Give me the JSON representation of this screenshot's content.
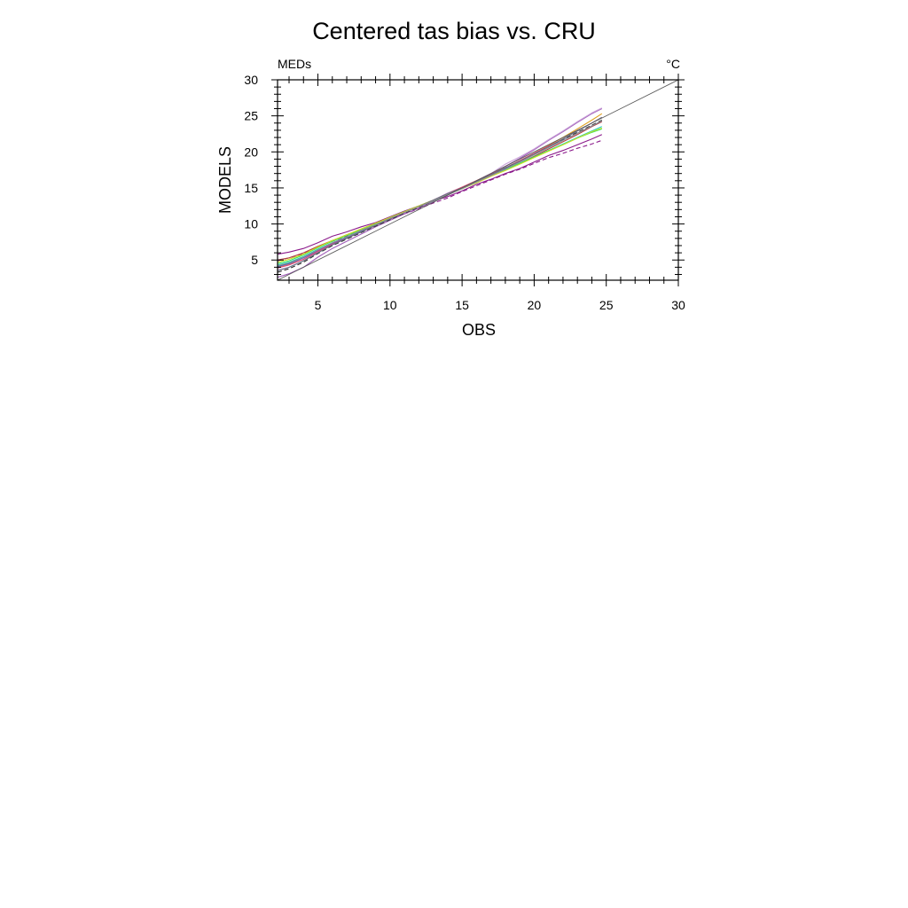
{
  "chart_data": {
    "type": "line",
    "title": "Centered tas bias vs. CRU",
    "subtitle_left": "MEDs",
    "subtitle_right": "°C",
    "xlabel": "OBS",
    "ylabel": "MODELS",
    "xlim": [
      2.2,
      30
    ],
    "ylim": [
      2.2,
      30
    ],
    "xticks": [
      5,
      10,
      15,
      20,
      25,
      30
    ],
    "yticks": [
      5,
      10,
      15,
      20,
      25,
      30
    ],
    "grid": false,
    "legend": "none",
    "reference_line": {
      "x": [
        2.2,
        30
      ],
      "y": [
        2.2,
        30
      ],
      "color": "#555555"
    },
    "series_x": [
      2.2,
      3,
      4,
      5,
      6,
      7,
      8,
      9,
      10,
      11,
      12,
      13,
      14,
      15,
      16,
      17,
      18,
      19,
      20,
      21,
      22,
      23,
      24,
      24.7
    ],
    "series": [
      {
        "color": "#8b1a8b",
        "dashed": false,
        "values": [
          5.8,
          6.1,
          6.6,
          7.4,
          8.3,
          8.9,
          9.6,
          10.2,
          11.0,
          11.8,
          12.5,
          13.2,
          13.8,
          14.6,
          15.5,
          16.2,
          17.0,
          17.7,
          18.6,
          19.5,
          20.2,
          21.0,
          21.8,
          22.4
        ]
      },
      {
        "color": "#8b1a8b",
        "dashed": true,
        "values": [
          4.9,
          5.3,
          5.9,
          6.8,
          7.6,
          8.3,
          9.1,
          9.8,
          10.7,
          11.4,
          12.1,
          12.9,
          13.6,
          14.5,
          15.3,
          16.1,
          16.9,
          17.6,
          18.4,
          19.2,
          19.8,
          20.5,
          21.1,
          21.6
        ]
      },
      {
        "color": "#a05cb8",
        "dashed": false,
        "values": [
          2.6,
          3.1,
          4.0,
          5.4,
          6.6,
          7.6,
          8.6,
          9.6,
          10.5,
          11.4,
          12.2,
          13.1,
          14.0,
          15.0,
          16.0,
          17.0,
          18.0,
          19.1,
          20.3,
          21.6,
          22.8,
          24.1,
          25.3,
          26.0
        ]
      },
      {
        "color": "#c8a0d8",
        "dashed": false,
        "values": [
          3.6,
          4.0,
          4.9,
          6.1,
          7.2,
          8.1,
          9.0,
          9.9,
          10.8,
          11.6,
          12.4,
          13.3,
          14.3,
          15.1,
          16.0,
          17.0,
          18.3,
          19.3,
          20.4,
          21.7,
          22.9,
          24.2,
          25.4,
          26.1
        ]
      },
      {
        "color": "#b04040",
        "dashed": false,
        "values": [
          5.0,
          5.3,
          6.0,
          6.9,
          7.7,
          8.5,
          9.3,
          10.1,
          10.9,
          11.7,
          12.5,
          13.3,
          14.1,
          14.9,
          15.8,
          16.7,
          17.5,
          18.4,
          19.4,
          20.4,
          21.4,
          22.4,
          23.5,
          24.2
        ]
      },
      {
        "color": "#e0a020",
        "dashed": false,
        "values": [
          4.0,
          4.4,
          5.1,
          6.2,
          7.2,
          8.0,
          8.9,
          9.8,
          10.7,
          11.6,
          12.4,
          13.3,
          14.2,
          15.1,
          16.0,
          16.9,
          17.8,
          18.8,
          19.8,
          20.9,
          22.0,
          23.2,
          24.4,
          25.3
        ]
      },
      {
        "color": "#20d0c0",
        "dashed": false,
        "values": [
          4.3,
          4.7,
          5.5,
          6.5,
          7.4,
          8.2,
          9.1,
          9.9,
          10.8,
          11.6,
          12.4,
          13.2,
          14.1,
          14.9,
          15.8,
          16.7,
          17.5,
          18.4,
          19.3,
          20.2,
          21.1,
          22.0,
          22.9,
          23.5
        ]
      },
      {
        "color": "#30e060",
        "dashed": false,
        "values": [
          4.5,
          4.9,
          5.7,
          6.7,
          7.6,
          8.4,
          9.2,
          10.0,
          10.9,
          11.7,
          12.5,
          13.3,
          14.1,
          15.0,
          15.8,
          16.7,
          17.6,
          18.4,
          19.3,
          20.2,
          21.0,
          21.9,
          22.7,
          23.2
        ]
      },
      {
        "color": "#4060d0",
        "dashed": false,
        "values": [
          4.1,
          4.5,
          5.3,
          6.3,
          7.3,
          8.1,
          9.0,
          9.9,
          10.8,
          11.6,
          12.5,
          13.3,
          14.2,
          15.0,
          15.9,
          16.8,
          17.7,
          18.6,
          19.6,
          20.6,
          21.6,
          22.6,
          23.6,
          24.3
        ]
      },
      {
        "color": "#d0e020",
        "dashed": false,
        "values": [
          4.7,
          5.1,
          5.8,
          6.8,
          7.7,
          8.5,
          9.3,
          10.1,
          10.9,
          11.7,
          12.5,
          13.3,
          14.1,
          14.9,
          15.7,
          16.6,
          17.4,
          18.3,
          19.2,
          20.1,
          21.0,
          21.9,
          22.8,
          23.3
        ]
      },
      {
        "color": "#e04080",
        "dashed": false,
        "values": [
          3.9,
          4.3,
          5.1,
          6.2,
          7.2,
          8.0,
          8.9,
          9.8,
          10.7,
          11.6,
          12.4,
          13.3,
          14.2,
          15.1,
          16.0,
          16.9,
          17.8,
          18.8,
          19.8,
          20.8,
          21.8,
          22.9,
          24.0,
          24.8
        ]
      },
      {
        "color": "#2a2a2a",
        "dashed": true,
        "values": [
          3.3,
          3.8,
          4.7,
          5.9,
          7.0,
          7.9,
          8.8,
          9.7,
          10.6,
          11.5,
          12.3,
          13.2,
          14.1,
          15.0,
          15.9,
          16.8,
          17.8,
          18.7,
          19.7,
          20.7,
          21.7,
          22.7,
          23.7,
          24.4
        ]
      },
      {
        "color": "#607080",
        "dashed": false,
        "values": [
          3.5,
          4.0,
          4.9,
          6.0,
          7.1,
          8.0,
          8.9,
          9.8,
          10.7,
          11.6,
          12.4,
          13.3,
          14.2,
          15.0,
          15.9,
          16.8,
          17.8,
          18.7,
          19.7,
          20.7,
          21.8,
          22.9,
          24.0,
          24.8
        ]
      },
      {
        "color": "#909090",
        "dashed": false,
        "values": [
          4.2,
          4.6,
          5.4,
          6.4,
          7.4,
          8.2,
          9.1,
          9.9,
          10.8,
          11.6,
          12.4,
          13.2,
          14.1,
          14.9,
          15.8,
          16.7,
          17.6,
          18.6,
          19.6,
          20.6,
          21.6,
          22.6,
          23.6,
          24.3
        ]
      }
    ]
  }
}
